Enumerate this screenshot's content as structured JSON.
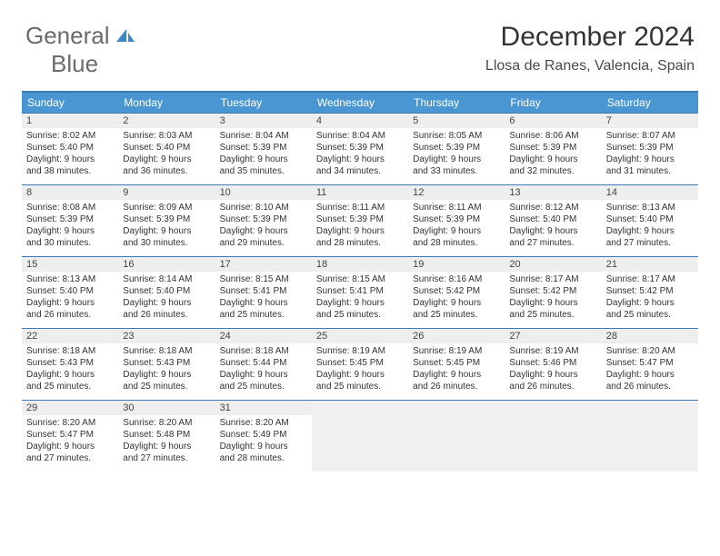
{
  "logo": {
    "word1": "General",
    "word2": "Blue"
  },
  "title": "December 2024",
  "location": "Llosa de Ranes, Valencia, Spain",
  "colors": {
    "header_bg": "#4a96d2",
    "border": "#3a7ab5",
    "daynum_bg": "#eeeeee",
    "empty_bg": "#f0f0f0",
    "text": "#333333",
    "logo_gray": "#6b6b6b",
    "logo_blue": "#3b87c8"
  },
  "day_headers": [
    "Sunday",
    "Monday",
    "Tuesday",
    "Wednesday",
    "Thursday",
    "Friday",
    "Saturday"
  ],
  "weeks": [
    [
      {
        "n": "1",
        "sr": "8:02 AM",
        "ss": "5:40 PM",
        "dl": "9 hours",
        "dm": "and 38 minutes."
      },
      {
        "n": "2",
        "sr": "8:03 AM",
        "ss": "5:40 PM",
        "dl": "9 hours",
        "dm": "and 36 minutes."
      },
      {
        "n": "3",
        "sr": "8:04 AM",
        "ss": "5:39 PM",
        "dl": "9 hours",
        "dm": "and 35 minutes."
      },
      {
        "n": "4",
        "sr": "8:04 AM",
        "ss": "5:39 PM",
        "dl": "9 hours",
        "dm": "and 34 minutes."
      },
      {
        "n": "5",
        "sr": "8:05 AM",
        "ss": "5:39 PM",
        "dl": "9 hours",
        "dm": "and 33 minutes."
      },
      {
        "n": "6",
        "sr": "8:06 AM",
        "ss": "5:39 PM",
        "dl": "9 hours",
        "dm": "and 32 minutes."
      },
      {
        "n": "7",
        "sr": "8:07 AM",
        "ss": "5:39 PM",
        "dl": "9 hours",
        "dm": "and 31 minutes."
      }
    ],
    [
      {
        "n": "8",
        "sr": "8:08 AM",
        "ss": "5:39 PM",
        "dl": "9 hours",
        "dm": "and 30 minutes."
      },
      {
        "n": "9",
        "sr": "8:09 AM",
        "ss": "5:39 PM",
        "dl": "9 hours",
        "dm": "and 30 minutes."
      },
      {
        "n": "10",
        "sr": "8:10 AM",
        "ss": "5:39 PM",
        "dl": "9 hours",
        "dm": "and 29 minutes."
      },
      {
        "n": "11",
        "sr": "8:11 AM",
        "ss": "5:39 PM",
        "dl": "9 hours",
        "dm": "and 28 minutes."
      },
      {
        "n": "12",
        "sr": "8:11 AM",
        "ss": "5:39 PM",
        "dl": "9 hours",
        "dm": "and 28 minutes."
      },
      {
        "n": "13",
        "sr": "8:12 AM",
        "ss": "5:40 PM",
        "dl": "9 hours",
        "dm": "and 27 minutes."
      },
      {
        "n": "14",
        "sr": "8:13 AM",
        "ss": "5:40 PM",
        "dl": "9 hours",
        "dm": "and 27 minutes."
      }
    ],
    [
      {
        "n": "15",
        "sr": "8:13 AM",
        "ss": "5:40 PM",
        "dl": "9 hours",
        "dm": "and 26 minutes."
      },
      {
        "n": "16",
        "sr": "8:14 AM",
        "ss": "5:40 PM",
        "dl": "9 hours",
        "dm": "and 26 minutes."
      },
      {
        "n": "17",
        "sr": "8:15 AM",
        "ss": "5:41 PM",
        "dl": "9 hours",
        "dm": "and 25 minutes."
      },
      {
        "n": "18",
        "sr": "8:15 AM",
        "ss": "5:41 PM",
        "dl": "9 hours",
        "dm": "and 25 minutes."
      },
      {
        "n": "19",
        "sr": "8:16 AM",
        "ss": "5:42 PM",
        "dl": "9 hours",
        "dm": "and 25 minutes."
      },
      {
        "n": "20",
        "sr": "8:17 AM",
        "ss": "5:42 PM",
        "dl": "9 hours",
        "dm": "and 25 minutes."
      },
      {
        "n": "21",
        "sr": "8:17 AM",
        "ss": "5:42 PM",
        "dl": "9 hours",
        "dm": "and 25 minutes."
      }
    ],
    [
      {
        "n": "22",
        "sr": "8:18 AM",
        "ss": "5:43 PM",
        "dl": "9 hours",
        "dm": "and 25 minutes."
      },
      {
        "n": "23",
        "sr": "8:18 AM",
        "ss": "5:43 PM",
        "dl": "9 hours",
        "dm": "and 25 minutes."
      },
      {
        "n": "24",
        "sr": "8:18 AM",
        "ss": "5:44 PM",
        "dl": "9 hours",
        "dm": "and 25 minutes."
      },
      {
        "n": "25",
        "sr": "8:19 AM",
        "ss": "5:45 PM",
        "dl": "9 hours",
        "dm": "and 25 minutes."
      },
      {
        "n": "26",
        "sr": "8:19 AM",
        "ss": "5:45 PM",
        "dl": "9 hours",
        "dm": "and 26 minutes."
      },
      {
        "n": "27",
        "sr": "8:19 AM",
        "ss": "5:46 PM",
        "dl": "9 hours",
        "dm": "and 26 minutes."
      },
      {
        "n": "28",
        "sr": "8:20 AM",
        "ss": "5:47 PM",
        "dl": "9 hours",
        "dm": "and 26 minutes."
      }
    ],
    [
      {
        "n": "29",
        "sr": "8:20 AM",
        "ss": "5:47 PM",
        "dl": "9 hours",
        "dm": "and 27 minutes."
      },
      {
        "n": "30",
        "sr": "8:20 AM",
        "ss": "5:48 PM",
        "dl": "9 hours",
        "dm": "and 27 minutes."
      },
      {
        "n": "31",
        "sr": "8:20 AM",
        "ss": "5:49 PM",
        "dl": "9 hours",
        "dm": "and 28 minutes."
      },
      null,
      null,
      null,
      null
    ]
  ],
  "labels": {
    "sunrise": "Sunrise:",
    "sunset": "Sunset:",
    "daylight": "Daylight:"
  }
}
